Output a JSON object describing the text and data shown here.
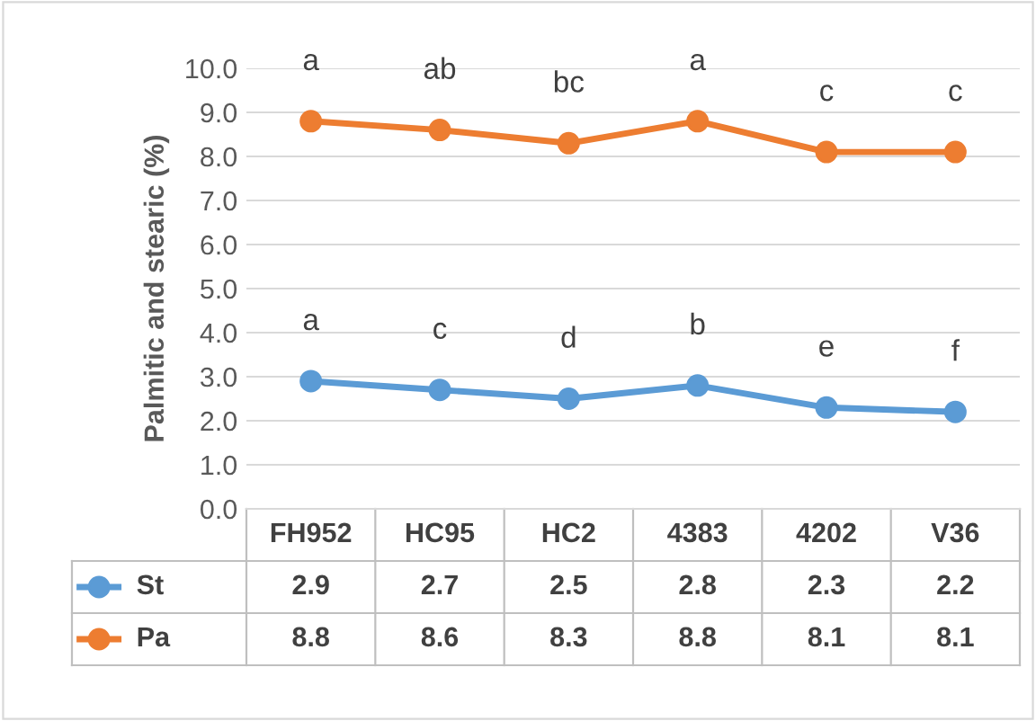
{
  "chart_data": {
    "type": "line",
    "ylabel": "Palmitic and stearic (%)",
    "categories": [
      "FH952",
      "HC95",
      "HC2",
      "4383",
      "4202",
      "V36"
    ],
    "series": [
      {
        "name": "St",
        "color": "#5b9bd5",
        "values": [
          2.9,
          2.7,
          2.5,
          2.8,
          2.3,
          2.2
        ]
      },
      {
        "name": "Pa",
        "color": "#ed7d31",
        "values": [
          8.8,
          8.6,
          8.3,
          8.8,
          8.1,
          8.1
        ]
      }
    ],
    "ylim": [
      0,
      10
    ],
    "yticks": [
      {
        "value": 0,
        "label": "0.0"
      },
      {
        "value": 1,
        "label": "1.0"
      },
      {
        "value": 2,
        "label": "2.0"
      },
      {
        "value": 3,
        "label": "3.0"
      },
      {
        "value": 4,
        "label": "4.0"
      },
      {
        "value": 5,
        "label": "5.0"
      },
      {
        "value": 6,
        "label": "6.0"
      },
      {
        "value": 7,
        "label": "7.0"
      },
      {
        "value": 8,
        "label": "8.0"
      },
      {
        "value": 9,
        "label": "9.0"
      },
      {
        "value": 10,
        "label": "10.0"
      }
    ],
    "annotations": [
      {
        "text": "a",
        "x": "FH952",
        "y": 2.9
      },
      {
        "text": "c",
        "x": "HC95",
        "y": 2.7
      },
      {
        "text": "d",
        "x": "HC2",
        "y": 2.5
      },
      {
        "text": "b",
        "x": "4383",
        "y": 2.8
      },
      {
        "text": "e",
        "x": "4202",
        "y": 2.3
      },
      {
        "text": "f",
        "x": "V36",
        "y": 2.2
      },
      {
        "text": "a",
        "x": "FH952",
        "y": 8.8
      },
      {
        "text": "ab",
        "x": "HC95",
        "y": 8.6
      },
      {
        "text": "bc",
        "x": "HC2",
        "y": 8.3
      },
      {
        "text": "a",
        "x": "4383",
        "y": 8.8
      },
      {
        "text": "c",
        "x": "4202",
        "y": 8.1
      },
      {
        "text": "c",
        "x": "V36",
        "y": 8.1
      }
    ],
    "grid": "y",
    "legend": "bottom",
    "marker": "circle",
    "line_style": "solid",
    "data_labels": true
  }
}
